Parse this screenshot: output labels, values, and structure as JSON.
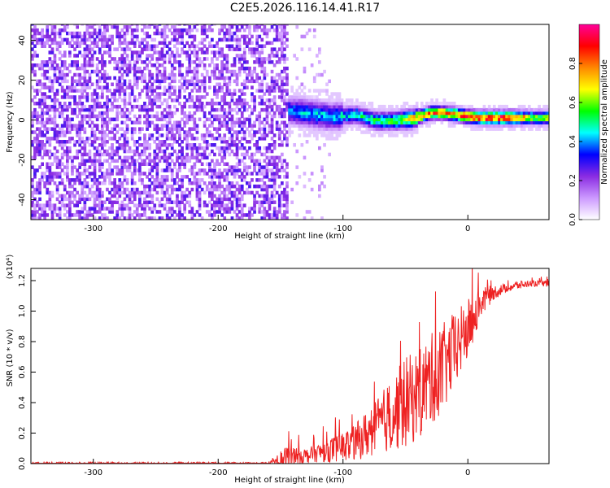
{
  "title": "C2E5.2026.116.14.41.R17",
  "chart_data": [
    {
      "type": "heatmap",
      "xlabel": "Height of straight line (km)",
      "ylabel": "Frequency (Hz)",
      "xlim": [
        -350,
        65
      ],
      "ylim": [
        -50,
        48
      ],
      "x_ticks": [
        -300,
        -200,
        -100,
        0
      ],
      "y_ticks": [
        -40,
        -20,
        0,
        20,
        40
      ],
      "colorbar": {
        "label": "Normalized spectral amplitude",
        "range": [
          0,
          1
        ],
        "ticks": [
          "0.0",
          "0.2",
          "0.4",
          "0.6",
          "0.8"
        ],
        "colors": [
          "#ffffff",
          "#cc99ff",
          "#8a2be2",
          "#0000ff",
          "#00ffff",
          "#00ff00",
          "#ffff00",
          "#ff8800",
          "#ff0000",
          "#ff0099"
        ]
      },
      "ridge": {
        "x": [
          -145,
          -130,
          -110,
          -90,
          -75,
          -60,
          -45,
          -30,
          -20,
          -10,
          0,
          10,
          30,
          50,
          65
        ],
        "y": [
          4,
          3,
          1,
          2,
          -1,
          -1,
          0,
          3,
          3,
          2,
          1,
          0.5,
          0.5,
          0.5,
          0.5
        ],
        "peak_amplitude": [
          0.4,
          0.45,
          0.45,
          0.5,
          0.55,
          0.6,
          0.75,
          0.9,
          0.8,
          0.85,
          0.9,
          0.95,
          0.95,
          0.7,
          0.7
        ]
      }
    },
    {
      "type": "line",
      "xlabel": "Height of straight line (km)",
      "ylabel": "SNR (10 * v/v)",
      "scale_label": "(x10⁴)",
      "xlim": [
        -350,
        65
      ],
      "ylim": [
        0,
        1.28
      ],
      "x_ticks": [
        -300,
        -200,
        -100,
        0
      ],
      "y_ticks": [
        "0.0",
        "0.2",
        "0.4",
        "0.6",
        "0.8",
        "1.0",
        "1.2"
      ],
      "series": [
        {
          "color": "#ee2222",
          "x": [
            -350,
            -300,
            -250,
            -200,
            -160,
            -145,
            -140,
            -130,
            -120,
            -110,
            -100,
            -90,
            -80,
            -70,
            -60,
            -50,
            -40,
            -30,
            -20,
            -10,
            0,
            10,
            20,
            30,
            40,
            50,
            65
          ],
          "y": [
            0.0,
            0.0,
            0.0,
            0.0,
            0.0,
            0.02,
            0.06,
            0.05,
            0.07,
            0.09,
            0.11,
            0.14,
            0.2,
            0.26,
            0.33,
            0.4,
            0.45,
            0.55,
            0.62,
            0.75,
            0.88,
            1.05,
            1.12,
            1.15,
            1.17,
            1.18,
            1.18
          ],
          "noise_amplitude": [
            0.01,
            0.01,
            0.01,
            0.01,
            0.01,
            0.1,
            0.06,
            0.05,
            0.06,
            0.08,
            0.1,
            0.12,
            0.16,
            0.2,
            0.25,
            0.3,
            0.3,
            0.3,
            0.3,
            0.25,
            0.2,
            0.1,
            0.05,
            0.03,
            0.03,
            0.02,
            0.02
          ]
        }
      ]
    }
  ]
}
